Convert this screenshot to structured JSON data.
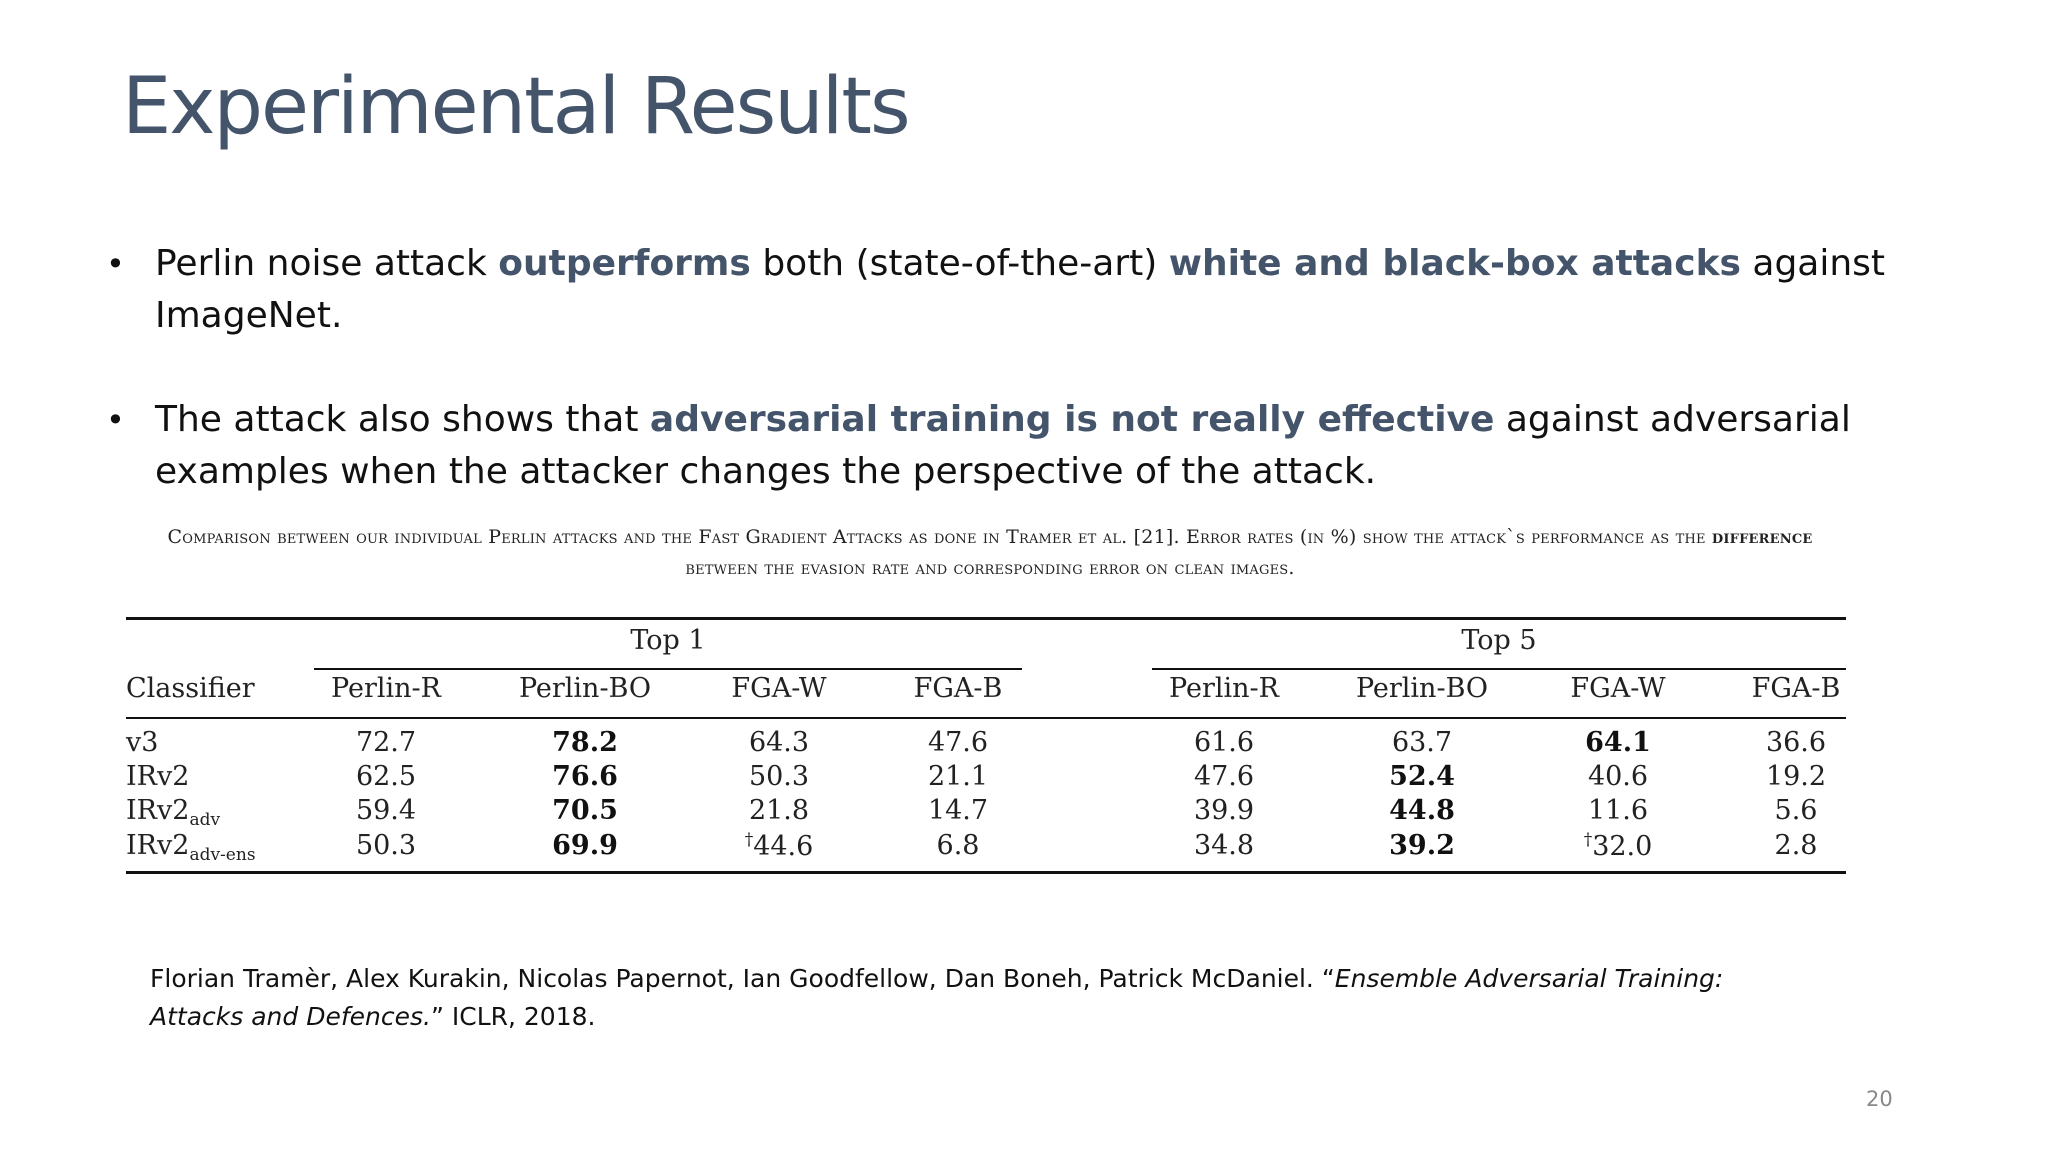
{
  "slide": {
    "title": "Experimental Results",
    "page_number": "20"
  },
  "bullets": [
    {
      "pre": "Perlin noise attack ",
      "hl1": "outperforms",
      "mid": " both (state-of-the-art) ",
      "hl2": "white and black-box attacks",
      "post": " against ImageNet."
    },
    {
      "pre": "The attack also shows that ",
      "hl1": "adversarial training is not really effective",
      "post": " against adversarial examples when the attacker changes the perspective of the attack."
    }
  ],
  "caption": {
    "part1": "Comparison between our individual Perlin attacks and the Fast Gradient Attacks as done in Tramer et al. [21]. Error rates (in %) show the attack`s performance as the ",
    "bold": "difference",
    "part2": " between the evasion rate and corresponding error on clean images."
  },
  "table": {
    "groups": [
      "Top 1",
      "Top 5"
    ],
    "header_first": "Classifier",
    "columns": [
      "Perlin-R",
      "Perlin-BO",
      "FGA-W",
      "FGA-B",
      "Perlin-R",
      "Perlin-BO",
      "FGA-W",
      "FGA-B"
    ],
    "rows": [
      {
        "name": "v3",
        "sub": "",
        "values": [
          "72.7",
          "78.2",
          "64.3",
          "47.6",
          "61.6",
          "63.7",
          "64.1",
          "36.6"
        ],
        "bold": [
          1,
          6
        ]
      },
      {
        "name": "IRv2",
        "sub": "",
        "values": [
          "62.5",
          "76.6",
          "50.3",
          "21.1",
          "47.6",
          "52.4",
          "40.6",
          "19.2"
        ],
        "bold": [
          1,
          5
        ]
      },
      {
        "name": "IRv2",
        "sub": "adv",
        "values": [
          "59.4",
          "70.5",
          "21.8",
          "14.7",
          "39.9",
          "44.8",
          "11.6",
          "5.6"
        ],
        "bold": [
          1,
          5
        ]
      },
      {
        "name": "IRv2",
        "sub": "adv-ens",
        "values": [
          "50.3",
          "69.9",
          "44.6",
          "6.8",
          "34.8",
          "39.2",
          "32.0",
          "2.8"
        ],
        "bold": [
          1,
          5
        ],
        "dagger": [
          2,
          6
        ]
      }
    ],
    "dagger_symbol": "†"
  },
  "reference": {
    "authors": "Florian Tramèr, Alex Kurakin, Nicolas Papernot, Ian Goodfellow, Dan Boneh, Patrick McDaniel. “",
    "title": "Ensemble Adversarial Training: Attacks and Defences.",
    "venue": "” ICLR, 2018."
  }
}
